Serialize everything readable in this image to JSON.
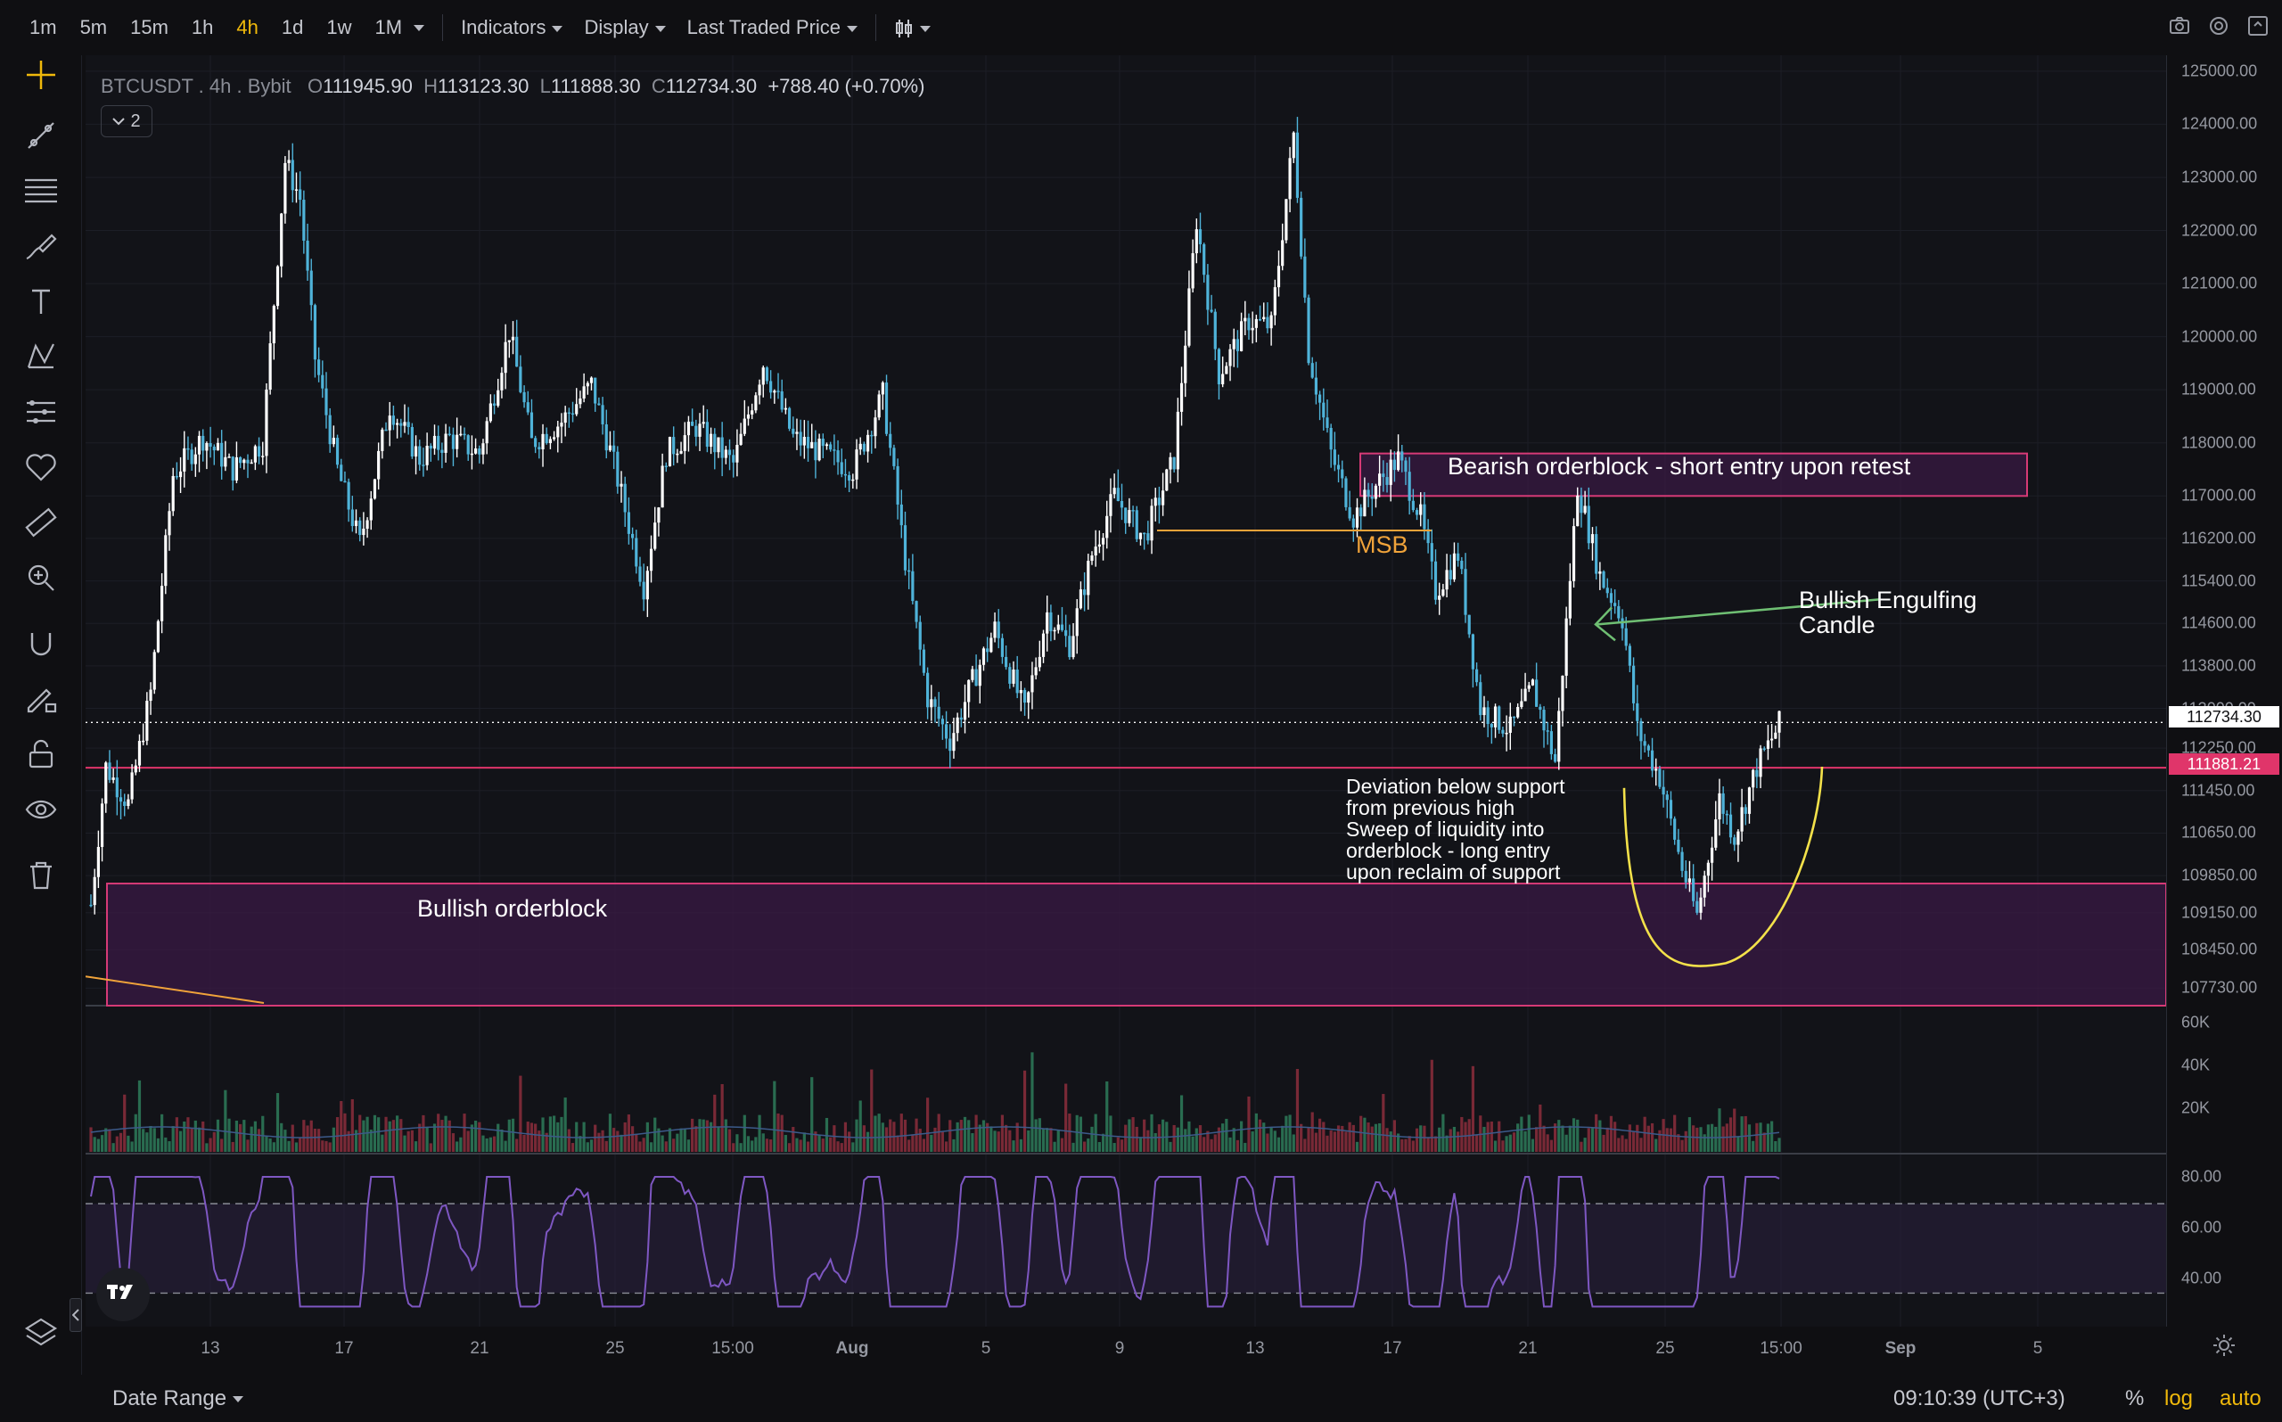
{
  "toolbar": {
    "timeframes": [
      "1m",
      "5m",
      "15m",
      "1h",
      "4h",
      "1d",
      "1w",
      "1M"
    ],
    "active_timeframe": "4h",
    "menus": {
      "indicators": "Indicators",
      "display": "Display",
      "price_source": "Last Traded Price"
    }
  },
  "legend": {
    "symbol": "BTCUSDT",
    "sep1": ".",
    "interval": "4h",
    "sep2": ".",
    "exchange": "Bybit",
    "o_label": "O",
    "open": "111945.90",
    "h_label": "H",
    "high": "113123.30",
    "l_label": "L",
    "low": "111888.30",
    "c_label": "C",
    "close": "112734.30",
    "change": "+788.40 (+0.70%)",
    "collapse_count": "2"
  },
  "price_axis": {
    "labels": [
      "125000.00",
      "124000.00",
      "123000.00",
      "122000.00",
      "121000.00",
      "120000.00",
      "119000.00",
      "118000.00",
      "117000.00",
      "116200.00",
      "115400.00",
      "114600.00",
      "113800.00",
      "113000.00",
      "112250.00",
      "111450.00",
      "110650.00",
      "109850.00",
      "109150.00",
      "108450.00",
      "107730.00"
    ],
    "current_price": "112734.30",
    "level_price": "111881.21",
    "volume_labels": [
      "60K",
      "40K",
      "20K"
    ],
    "rsi_labels": [
      "80.00",
      "60.00",
      "40.00"
    ]
  },
  "time_axis": {
    "labels": [
      "13",
      "17",
      "21",
      "25",
      "15:00",
      "Aug",
      "5",
      "9",
      "13",
      "17",
      "21",
      "25",
      "15:00",
      "Sep",
      "5"
    ]
  },
  "annotations": {
    "bearish_ob": "Bearish orderblock - short entry upon retest",
    "msb": "MSB",
    "engulfing_line1": "Bullish Engulfing",
    "engulfing_line2": "Candle",
    "deviation_lines": [
      "Deviation below support",
      "from previous high",
      "Sweep of liquidity into",
      "orderblock - long entry",
      "upon reclaim of support"
    ],
    "bullish_ob": "Bullish orderblock"
  },
  "bottom": {
    "date_range": "Date Range",
    "clock": "09:10:39 (UTC+3)",
    "percent": "%",
    "log": "log",
    "auto": "auto"
  },
  "colors": {
    "up": "#ffffff",
    "down": "#4fb3d9",
    "accent": "#f0b90b",
    "level": "#e0356a",
    "msb": "#f0a33a",
    "engulf": "#6fbf73",
    "curve": "#f3e14a",
    "rsi": "#7e57c2"
  },
  "chart_data": {
    "type": "candlestick",
    "symbol": "BTCUSDT",
    "interval": "4h",
    "ylim": [
      107400,
      125300
    ],
    "ohlc_last": {
      "open": 111945.9,
      "high": 113123.3,
      "low": 111888.3,
      "close": 112734.3
    },
    "path_points": [
      [
        0,
        109300
      ],
      [
        4,
        111900
      ],
      [
        10,
        111200
      ],
      [
        16,
        113300
      ],
      [
        22,
        117400
      ],
      [
        30,
        118100
      ],
      [
        38,
        117500
      ],
      [
        46,
        118000
      ],
      [
        52,
        123300
      ],
      [
        56,
        122600
      ],
      [
        60,
        119600
      ],
      [
        66,
        117500
      ],
      [
        72,
        116100
      ],
      [
        80,
        118700
      ],
      [
        88,
        117700
      ],
      [
        96,
        118100
      ],
      [
        104,
        117800
      ],
      [
        112,
        120100
      ],
      [
        118,
        118000
      ],
      [
        126,
        118400
      ],
      [
        134,
        119100
      ],
      [
        140,
        117600
      ],
      [
        148,
        115300
      ],
      [
        154,
        117800
      ],
      [
        162,
        118300
      ],
      [
        172,
        117600
      ],
      [
        180,
        119500
      ],
      [
        188,
        118100
      ],
      [
        196,
        117800
      ],
      [
        204,
        117500
      ],
      [
        212,
        118900
      ],
      [
        218,
        115800
      ],
      [
        224,
        113200
      ],
      [
        230,
        112400
      ],
      [
        236,
        113500
      ],
      [
        242,
        114500
      ],
      [
        250,
        112900
      ],
      [
        256,
        114800
      ],
      [
        262,
        114200
      ],
      [
        268,
        115900
      ],
      [
        274,
        117000
      ],
      [
        282,
        116200
      ],
      [
        290,
        117700
      ],
      [
        296,
        122200
      ],
      [
        302,
        119300
      ],
      [
        310,
        120300
      ],
      [
        316,
        120200
      ],
      [
        322,
        123800
      ],
      [
        326,
        119700
      ],
      [
        332,
        117800
      ],
      [
        338,
        116600
      ],
      [
        344,
        117200
      ],
      [
        350,
        117700
      ],
      [
        356,
        116600
      ],
      [
        360,
        115200
      ],
      [
        366,
        115900
      ],
      [
        372,
        113000
      ],
      [
        380,
        112600
      ],
      [
        386,
        113400
      ],
      [
        392,
        112000
      ],
      [
        398,
        117200
      ],
      [
        404,
        115500
      ],
      [
        410,
        114700
      ],
      [
        414,
        112600
      ],
      [
        420,
        111700
      ],
      [
        426,
        110000
      ],
      [
        430,
        109100
      ],
      [
        436,
        111300
      ],
      [
        440,
        110600
      ],
      [
        446,
        111900
      ],
      [
        452,
        112700
      ]
    ],
    "volume_max": 60000,
    "rsi": {
      "upper": 70,
      "lower": 30
    }
  }
}
